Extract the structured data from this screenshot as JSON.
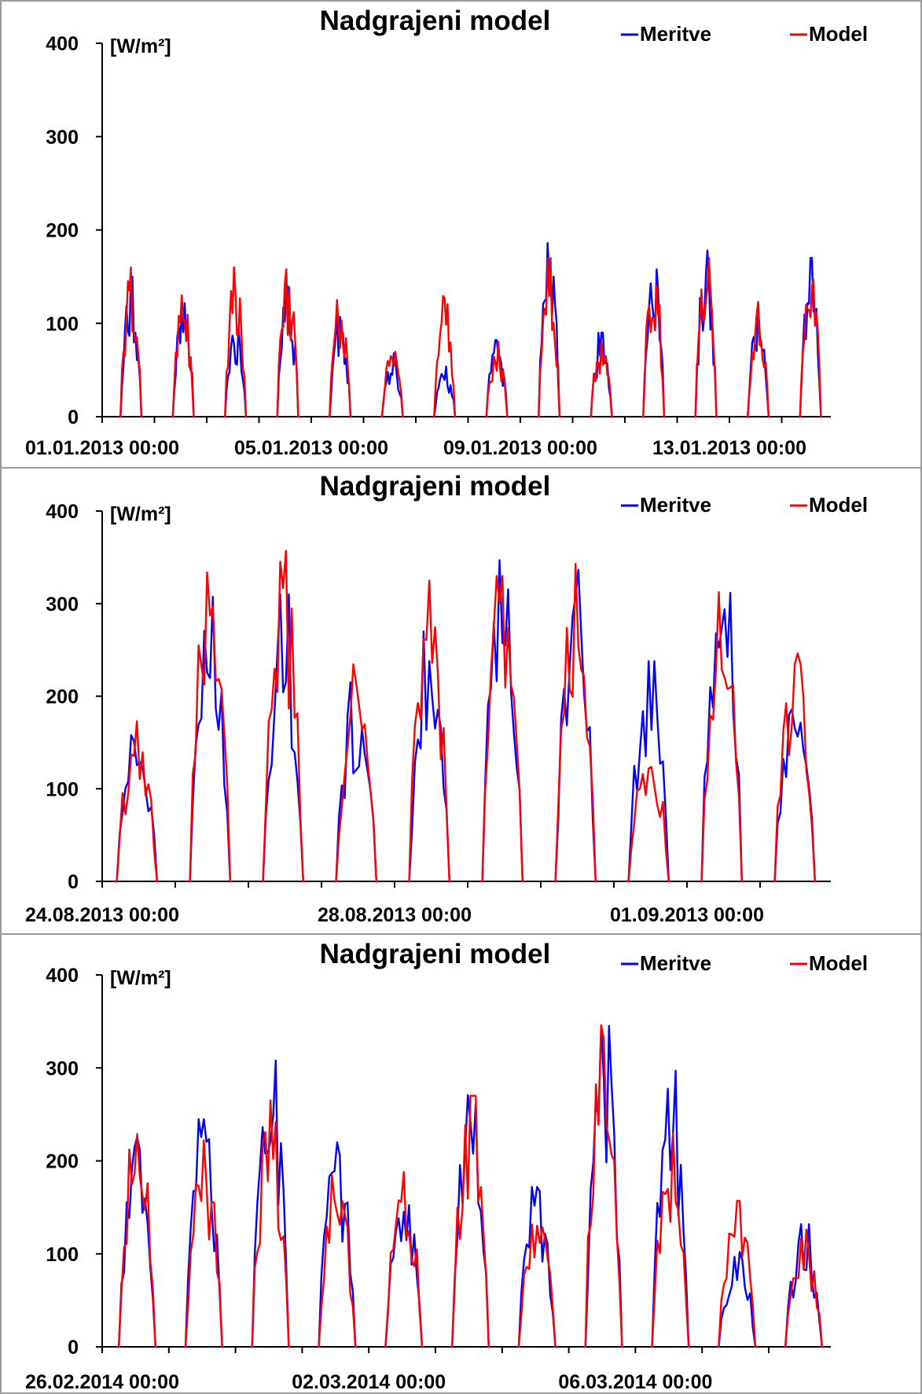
{
  "chart_data": [
    {
      "type": "line",
      "title": "Nadgrajeni model",
      "ylabel": "[W/m²]",
      "ylim": [
        0,
        400
      ],
      "yticks": [
        "0",
        "100",
        "200",
        "300",
        "400"
      ],
      "xticks": [
        "01.01.2013 00:00",
        "05.01.2013 00:00",
        "09.01.2013 00:00",
        "13.01.2013 00:00"
      ],
      "x_start": "01.01.2013 00:00",
      "x_end": "15.01.2013 00:00",
      "legend": "top-right",
      "series": [
        {
          "name": "Meritve",
          "color": "#0000ff",
          "days": [
            [
              0.38,
              0,
              40
            ],
            [
              0.45,
              0,
              150
            ],
            [
              0.52,
              0,
              148
            ],
            [
              0.58,
              0,
              88
            ],
            [
              0.64,
              0,
              0
            ],
            [
              1.38,
              0,
              0
            ],
            [
              1.48,
              0,
              135
            ],
            [
              1.55,
              0,
              132
            ],
            [
              1.62,
              0,
              55
            ],
            [
              1.7,
              0,
              40
            ],
            [
              1.75,
              0,
              0
            ],
            [
              2.4,
              0,
              0
            ],
            [
              2.52,
              0,
              100
            ],
            [
              2.58,
              0,
              70
            ],
            [
              2.64,
              0,
              95
            ],
            [
              2.7,
              0,
              62
            ],
            [
              2.75,
              0,
              0
            ],
            [
              3.42,
              0,
              0
            ],
            [
              3.52,
              0,
              118
            ],
            [
              3.58,
              0,
              140
            ],
            [
              3.64,
              0,
              100
            ],
            [
              3.7,
              0,
              95
            ],
            [
              3.75,
              0,
              0
            ],
            [
              4.42,
              0,
              0
            ],
            [
              4.52,
              0,
              112
            ],
            [
              4.58,
              0,
              70
            ],
            [
              4.64,
              0,
              55
            ],
            [
              4.7,
              0,
              35
            ],
            [
              4.74,
              0,
              0
            ],
            [
              5.42,
              0,
              0
            ],
            [
              5.52,
              0,
              40
            ],
            [
              5.58,
              0,
              55
            ],
            [
              5.64,
              0,
              58
            ],
            [
              5.7,
              0,
              68
            ],
            [
              5.74,
              0,
              0
            ],
            [
              6.42,
              0,
              0
            ],
            [
              6.52,
              0,
              42
            ],
            [
              6.58,
              0,
              55
            ],
            [
              6.64,
              0,
              48
            ],
            [
              6.72,
              0,
              0
            ],
            [
              7.42,
              0,
              0
            ],
            [
              7.52,
              0,
              40
            ],
            [
              7.58,
              0,
              82
            ],
            [
              7.64,
              0,
              50
            ],
            [
              7.72,
              0,
              0
            ],
            [
              8.42,
              0,
              0
            ],
            [
              8.52,
              0,
              165
            ],
            [
              8.58,
              0,
              186
            ],
            [
              8.64,
              0,
              80
            ],
            [
              8.72,
              0,
              0
            ],
            [
              9.42,
              0,
              0
            ],
            [
              9.52,
              0,
              68
            ],
            [
              9.56,
              0,
              30
            ],
            [
              9.62,
              0,
              60
            ],
            [
              9.66,
              0,
              90
            ],
            [
              9.72,
              0,
              0
            ],
            [
              10.42,
              0,
              0
            ],
            [
              10.52,
              0,
              60
            ],
            [
              10.58,
              0,
              180
            ],
            [
              10.64,
              0,
              90
            ],
            [
              10.72,
              0,
              0
            ],
            [
              11.42,
              0,
              0
            ],
            [
              11.52,
              0,
              178
            ],
            [
              11.56,
              0,
              140
            ],
            [
              11.6,
              0,
              130
            ],
            [
              11.64,
              0,
              60
            ],
            [
              11.7,
              0,
              0
            ],
            [
              12.42,
              0,
              0
            ],
            [
              12.5,
              0,
              100
            ],
            [
              12.56,
              0,
              60
            ],
            [
              12.62,
              0,
              120
            ],
            [
              12.68,
              0,
              60
            ],
            [
              12.72,
              0,
              0
            ],
            [
              13.42,
              0,
              0
            ],
            [
              13.5,
              0,
              18
            ],
            [
              13.56,
              0,
              20
            ],
            [
              13.62,
              0,
              40
            ],
            [
              13.68,
              0,
              170
            ],
            [
              13.72,
              0,
              70
            ],
            [
              13.76,
              0,
              0
            ]
          ]
        },
        {
          "name": "Model",
          "color": "#ff0000",
          "days": []
        }
      ]
    },
    {
      "type": "line",
      "title": "Nadgrajeni model",
      "ylabel": "[W/m²]",
      "ylim": [
        0,
        400
      ],
      "yticks": [
        "0",
        "100",
        "200",
        "300",
        "400"
      ],
      "xticks": [
        "24.08.2013 00:00",
        "28.08.2013 00:00",
        "01.09.2013 00:00"
      ],
      "x_start": "24.08.2013 00:00",
      "x_end": "02.09.2013 00:00",
      "legend": "top-right",
      "series": [
        {
          "name": "Meritve",
          "color": "#0000ff"
        },
        {
          "name": "Model",
          "color": "#ff0000"
        }
      ]
    },
    {
      "type": "line",
      "title": "Nadgrajeni model",
      "ylabel": "[W/m²]",
      "ylim": [
        0,
        400
      ],
      "yticks": [
        "0",
        "100",
        "200",
        "300",
        "400"
      ],
      "xticks": [
        "26.02.2014 00:00",
        "02.03.2014 00:00",
        "06.03.2014 00:00"
      ],
      "x_start": "26.02.2014 00:00",
      "x_end": "07.03.2014 00:00",
      "legend": "top-right",
      "series": [
        {
          "name": "Meritve",
          "color": "#0000ff"
        },
        {
          "name": "Model",
          "color": "#ff0000"
        }
      ]
    }
  ]
}
